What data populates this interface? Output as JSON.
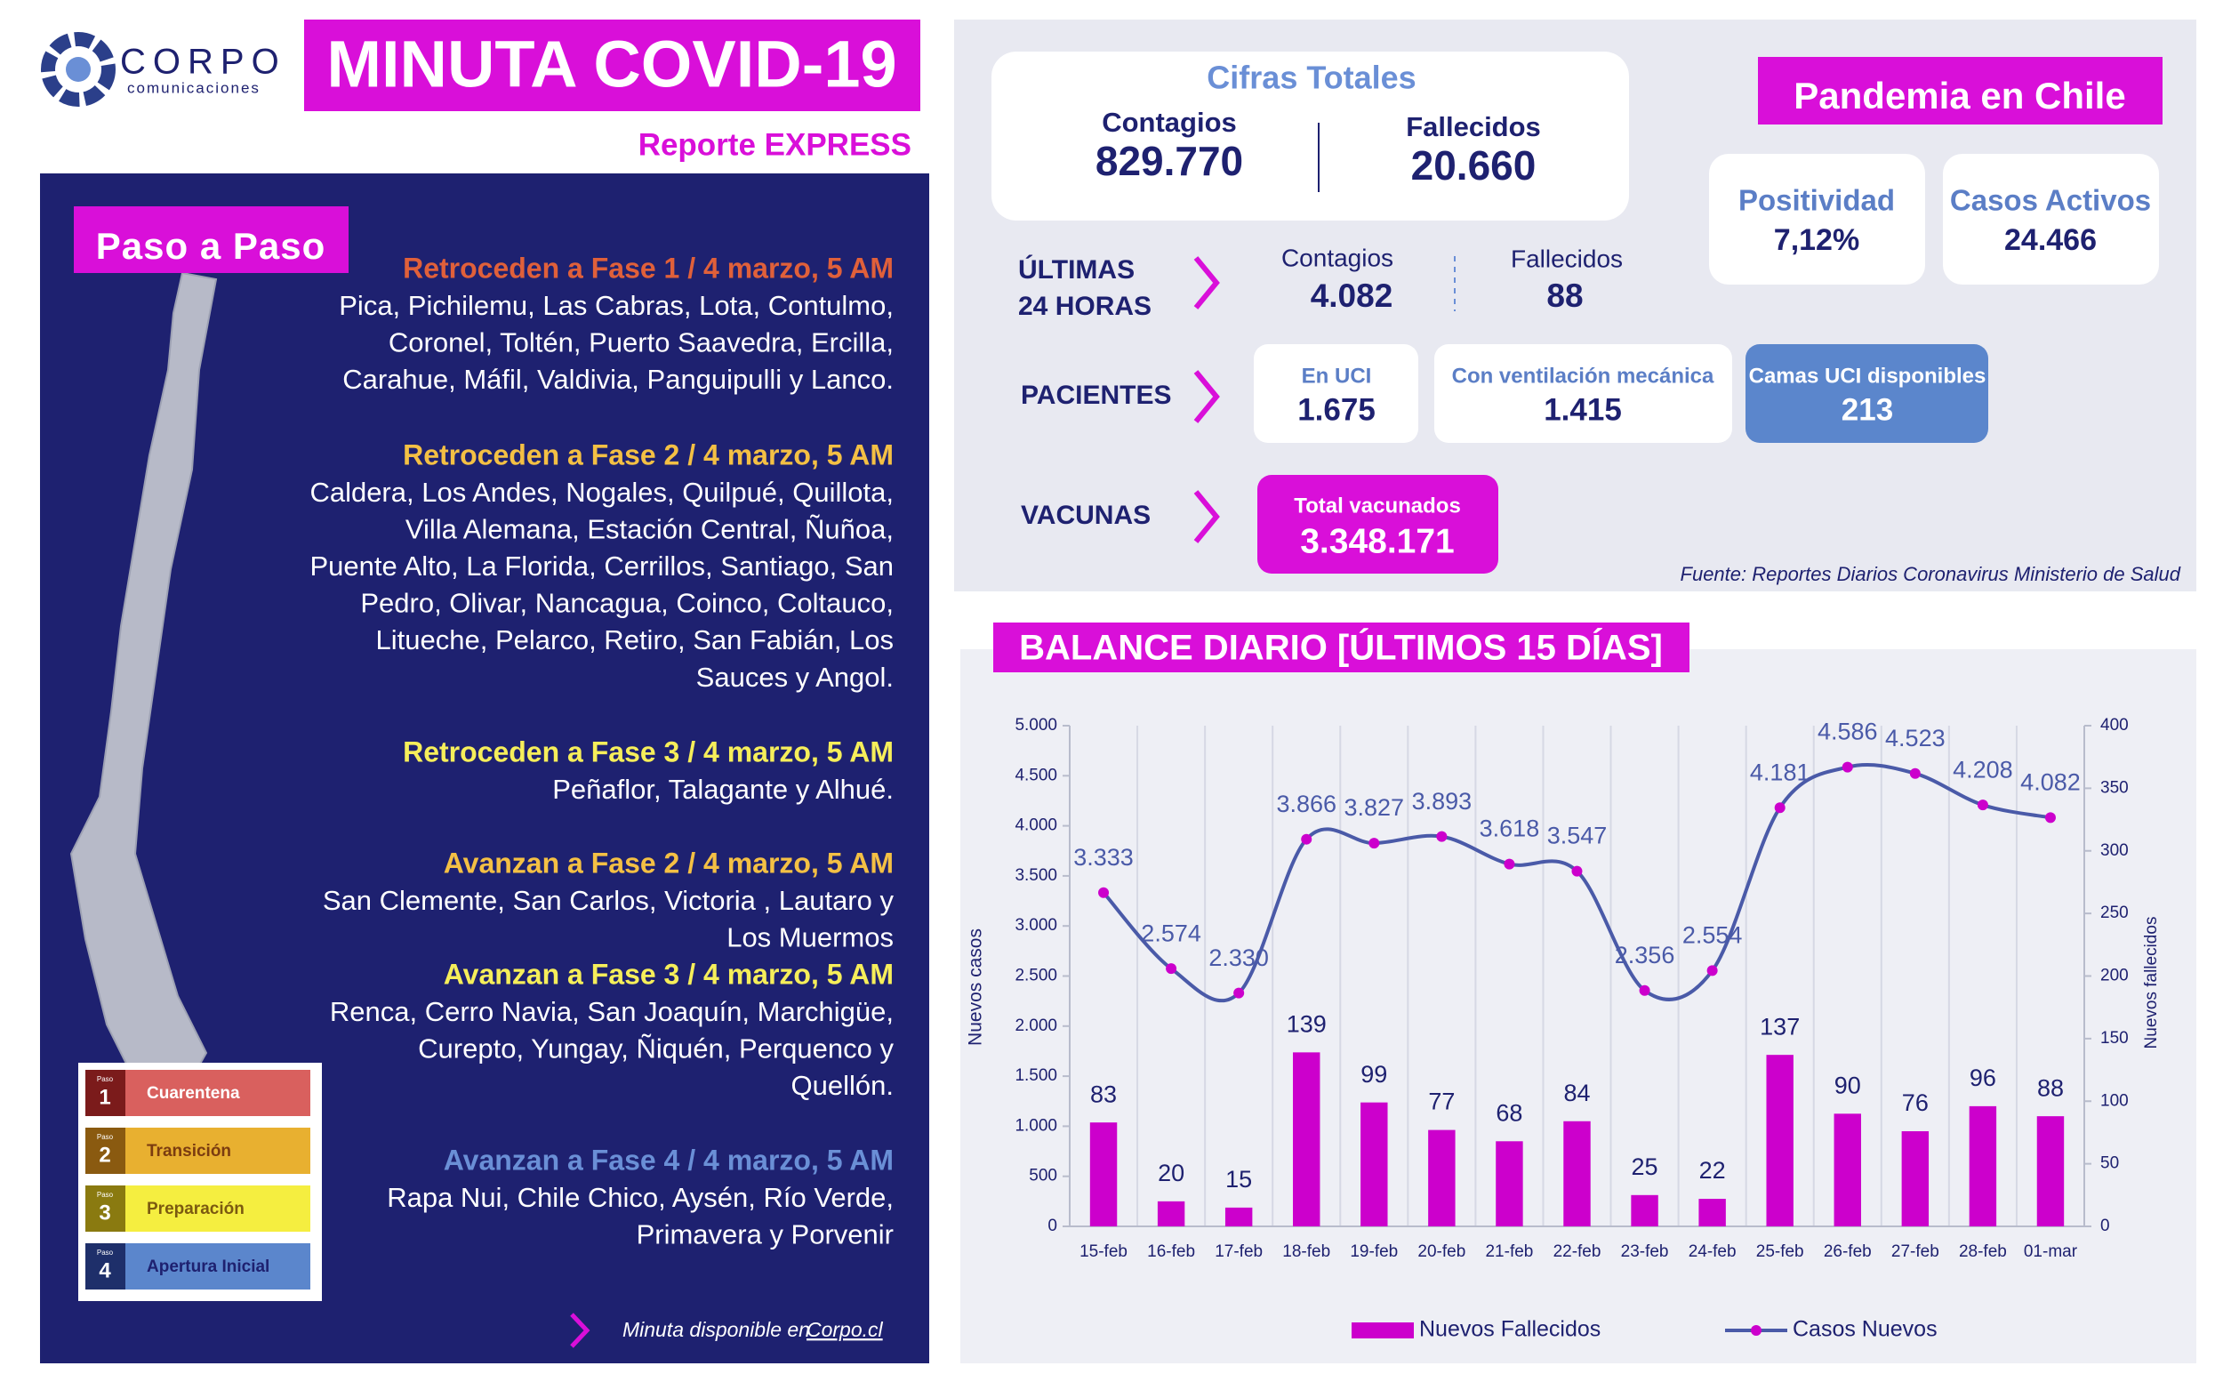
{
  "header": {
    "logo": "CORPO",
    "logo_sub": "comunicaciones",
    "title": "MINUTA COVID-19",
    "subtitle": "Reporte EXPRESS"
  },
  "paso_a_paso": {
    "title": "Paso a Paso",
    "groups": [
      {
        "heading": "Retroceden a Fase 1 / 4 marzo, 5 AM",
        "color": "#e0603a",
        "lines": [
          "Pica, Pichilemu, Las Cabras, Lota, Contulmo,",
          "Coronel, Toltén, Puerto Saavedra, Ercilla,",
          "Carahue, Máfil, Valdivia, Panguipulli y Lanco."
        ]
      },
      {
        "heading": "Retroceden a Fase 2 / 4 marzo, 5 AM",
        "color": "#f4c044",
        "lines": [
          "Caldera, Los Andes, Nogales, Quilpué, Quillota,",
          "Villa Alemana, Estación Central, Ñuñoa,",
          "Puente Alto, La Florida, Cerrillos, Santiago, San",
          "Pedro, Olivar, Nancagua, Coinco, Coltauco,",
          "Litueche, Pelarco, Retiro, San Fabián, Los",
          "Sauces y Angol."
        ]
      },
      {
        "heading": "Retroceden a Fase 3 / 4 marzo, 5 AM",
        "color": "#f6ee5a",
        "lines": [
          "Peñaflor, Talagante y Alhué."
        ]
      },
      {
        "heading": "Avanzan a Fase 2 / 4 marzo, 5 AM",
        "color": "#f4c044",
        "lines": [
          "San Clemente, San Carlos, Victoria , Lautaro y",
          "Los Muermos"
        ]
      },
      {
        "heading": "Avanzan a Fase 3 / 4 marzo, 5 AM",
        "color": "#f6ee5a",
        "lines": [
          "Renca, Cerro Navia, San Joaquín, Marchigüe,",
          "Curepto, Yungay, Ñiquén, Perquenco y",
          "Quellón."
        ]
      },
      {
        "heading": "Avanzan a Fase 4 / 4 marzo, 5 AM",
        "color": "#6a8fd6",
        "lines": [
          "Rapa Nui, Chile Chico, Aysén, Río Verde,",
          "Primavera y Porvenir"
        ]
      }
    ],
    "legend": [
      {
        "small": "Paso",
        "number": "1",
        "label": "Cuarentena",
        "color": "#d9605e",
        "dark": "#7b1b1b",
        "text_color": "#ffffff"
      },
      {
        "small": "Paso",
        "number": "2",
        "label": "Transición",
        "color": "#e8b030",
        "dark": "#8a5a10",
        "text_color": "#7b3c10"
      },
      {
        "small": "Paso",
        "number": "3",
        "label": "Preparación",
        "color": "#f5ee40",
        "dark": "#8a7a10",
        "text_color": "#7b5a10"
      },
      {
        "small": "Paso",
        "number": "4",
        "label": "Apertura Inicial",
        "color": "#5b86cc",
        "dark": "#1e2f6a",
        "text_color": "#1e2170"
      }
    ],
    "footer": {
      "text": "Minuta disponible en",
      "link": "Corpo.cl"
    }
  },
  "totals": {
    "title": "Cifras Totales",
    "contagios_label": "Contagios",
    "contagios": "829.770",
    "fallecidos_label": "Fallecidos",
    "fallecidos": "20.660"
  },
  "pandemia": {
    "title": "Pandemia en Chile",
    "positividad_label": "Positividad",
    "positividad": "7,12%",
    "activos_label": "Casos Activos",
    "activos": "24.466"
  },
  "ultimas": {
    "label_lines": [
      "ÚLTIMAS",
      "24 HORAS"
    ],
    "contagios_label": "Contagios",
    "contagios": "4.082",
    "fallecidos_label": "Fallecidos",
    "fallecidos": "88"
  },
  "pacientes": {
    "label": "PACIENTES",
    "uci_label": "En UCI",
    "uci": "1.675",
    "vent_label": "Con ventilación mecánica",
    "vent": "1.415",
    "camas_label": "Camas UCI disponibles",
    "camas": "213"
  },
  "vacunas": {
    "label": "VACUNAS",
    "total_label": "Total vacunados",
    "total": "3.348.171"
  },
  "source": "Fuente: Reportes Diarios Coronavirus Ministerio de Salud",
  "chart_data": {
    "type": "combo",
    "title": "BALANCE DIARIO [ÚLTIMOS 15 DÍAS]",
    "categories": [
      "15-feb",
      "16-feb",
      "17-feb",
      "18-feb",
      "19-feb",
      "20-feb",
      "21-feb",
      "22-feb",
      "23-feb",
      "24-feb",
      "25-feb",
      "26-feb",
      "27-feb",
      "28-feb",
      "01-mar"
    ],
    "series": [
      {
        "name": "Nuevos Fallecidos",
        "type": "bar",
        "axis": "y2",
        "color": "#cc00cc",
        "values": [
          83,
          20,
          15,
          139,
          99,
          77,
          68,
          84,
          25,
          22,
          137,
          90,
          76,
          96,
          88
        ]
      },
      {
        "name": "Casos Nuevos",
        "type": "line",
        "color": "#4a5aa8",
        "marker_color": "#cc00cc",
        "values": [
          3333,
          2574,
          2330,
          3866,
          3827,
          3893,
          3618,
          3547,
          2356,
          2554,
          4181,
          4586,
          4523,
          4208,
          4082
        ],
        "value_labels": [
          "3.333",
          "2.574",
          "2.330",
          "3.866",
          "3.827",
          "3.893",
          "3.618",
          "3.547",
          "2.356",
          "2.554",
          "4.181",
          "4.586",
          "4.523",
          "4.208",
          "4.082"
        ]
      }
    ],
    "ylabel": "Nuevos casos",
    "y2label": "Nuevos fallecidos",
    "ylim": [
      0,
      5000
    ],
    "yticks": [
      0,
      500,
      {
        "value": 1000,
        "label": "1.000"
      },
      {
        "value": 1500,
        "label": "1.500"
      },
      {
        "value": 2000,
        "label": "2.000"
      },
      {
        "value": 2500,
        "label": "2.500"
      },
      {
        "value": 3000,
        "label": "3.000"
      },
      {
        "value": 3500,
        "label": "3.500"
      },
      {
        "value": 4000,
        "label": "4.000"
      },
      {
        "value": 4500,
        "label": "4.500"
      },
      {
        "value": 5000,
        "label": "5.000"
      }
    ],
    "y2lim": [
      0,
      400
    ],
    "y2ticks": [
      0,
      50,
      100,
      150,
      200,
      250,
      300,
      350,
      400
    ],
    "grid": true,
    "legend": "bottom"
  }
}
